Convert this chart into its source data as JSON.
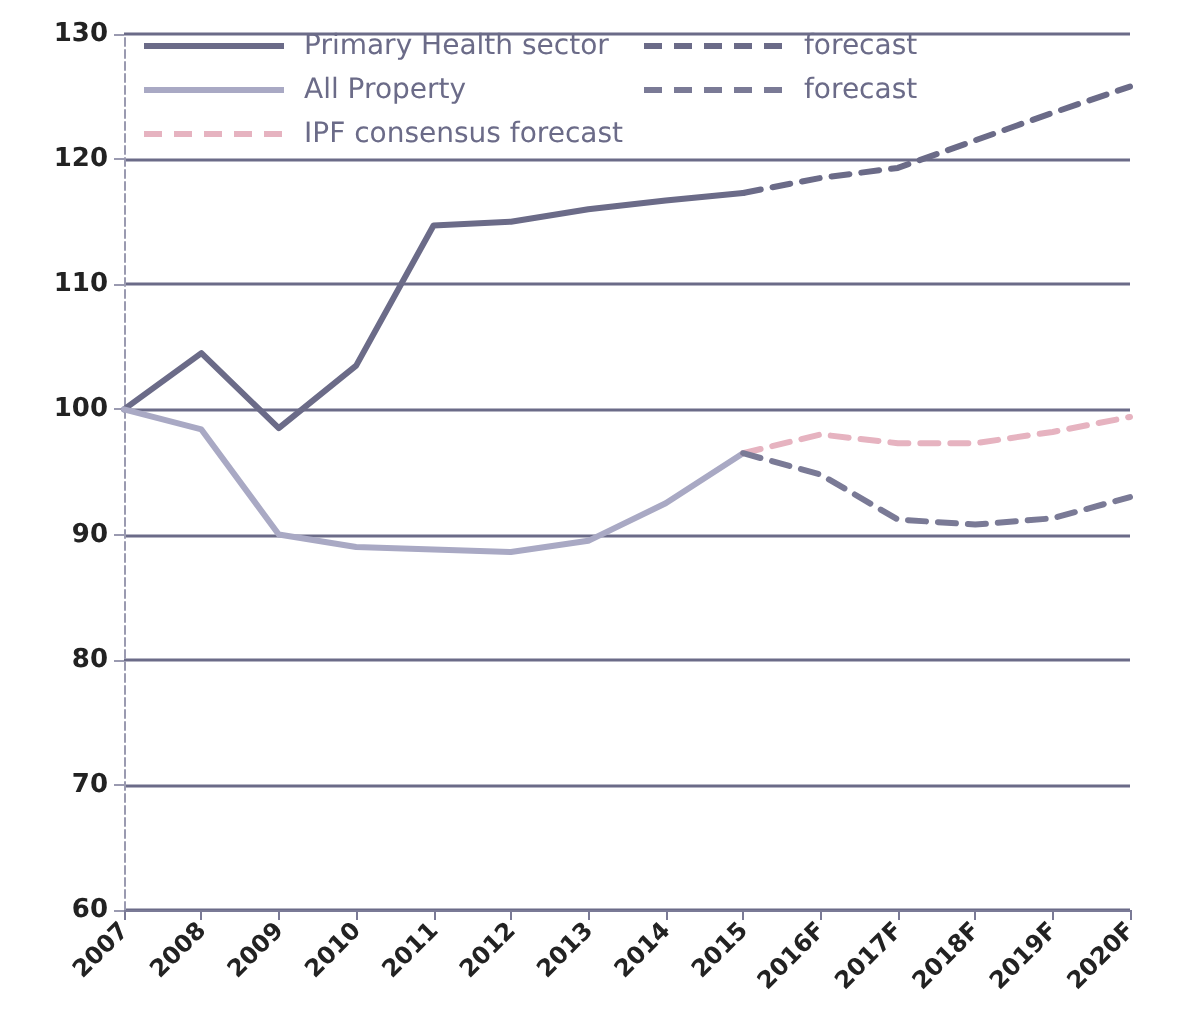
{
  "chart_data": {
    "type": "line",
    "categories": [
      "2007",
      "2008",
      "2009",
      "2010",
      "2011",
      "2012",
      "2013",
      "2014",
      "2015",
      "2016F",
      "2017F",
      "2018F",
      "2019F",
      "2020F"
    ],
    "ylim": [
      60,
      130
    ],
    "yticks": [
      60,
      70,
      80,
      90,
      100,
      110,
      120,
      130
    ],
    "grid": "y",
    "legend": "top left",
    "marker": "none",
    "series": [
      {
        "name": "Primary Health sector",
        "color": "#6b6b88",
        "line_style": "solid",
        "values": [
          100,
          104.5,
          98.5,
          103.5,
          114.7,
          115,
          116,
          116.7,
          117.3,
          null,
          null,
          null,
          null,
          null
        ]
      },
      {
        "name": "All Property",
        "color": "#a9a9c4",
        "line_style": "solid",
        "values": [
          100,
          98.4,
          90,
          89,
          88.8,
          88.6,
          89.5,
          92.5,
          96.5,
          null,
          null,
          null,
          null,
          null
        ]
      },
      {
        "name": "IPF consensus forecast",
        "color": "#e6b3c0",
        "line_style": "dashed",
        "values": [
          null,
          null,
          null,
          null,
          null,
          null,
          null,
          null,
          96.5,
          98,
          97.3,
          97.3,
          98.2,
          99.4
        ]
      },
      {
        "name": "forecast",
        "color": "#6b6b88",
        "line_style": "dashed",
        "values": [
          null,
          null,
          null,
          null,
          null,
          null,
          null,
          null,
          117.3,
          118.5,
          119.3,
          121.5,
          123.7,
          125.8
        ]
      },
      {
        "name": "forecast",
        "color": "#7a7a96",
        "line_style": "dashed",
        "values": [
          null,
          null,
          null,
          null,
          null,
          null,
          null,
          null,
          96.5,
          94.8,
          91.2,
          90.8,
          91.3,
          93
        ]
      }
    ]
  }
}
